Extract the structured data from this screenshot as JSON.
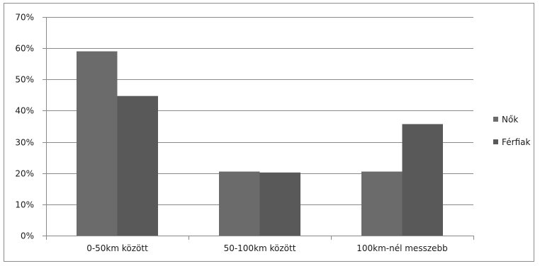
{
  "chart_data": {
    "type": "bar",
    "categories": [
      "0-50km között",
      "50-100km között",
      "100km-nél messzebb"
    ],
    "series": [
      {
        "name": "Nők",
        "values": [
          59,
          20.5,
          20.5
        ],
        "color": "#6b6b6b"
      },
      {
        "name": "Férfiak",
        "values": [
          44.7,
          20.2,
          35.7
        ],
        "color": "#595959"
      }
    ],
    "ylim": [
      0,
      70
    ],
    "yticks": [
      0,
      10,
      20,
      30,
      40,
      50,
      60,
      70
    ],
    "ytick_labels": [
      "0%",
      "10%",
      "20%",
      "30%",
      "40%",
      "50%",
      "60%",
      "70%"
    ],
    "grid": true,
    "legend": "right",
    "title": "",
    "xlabel": "",
    "ylabel": ""
  }
}
